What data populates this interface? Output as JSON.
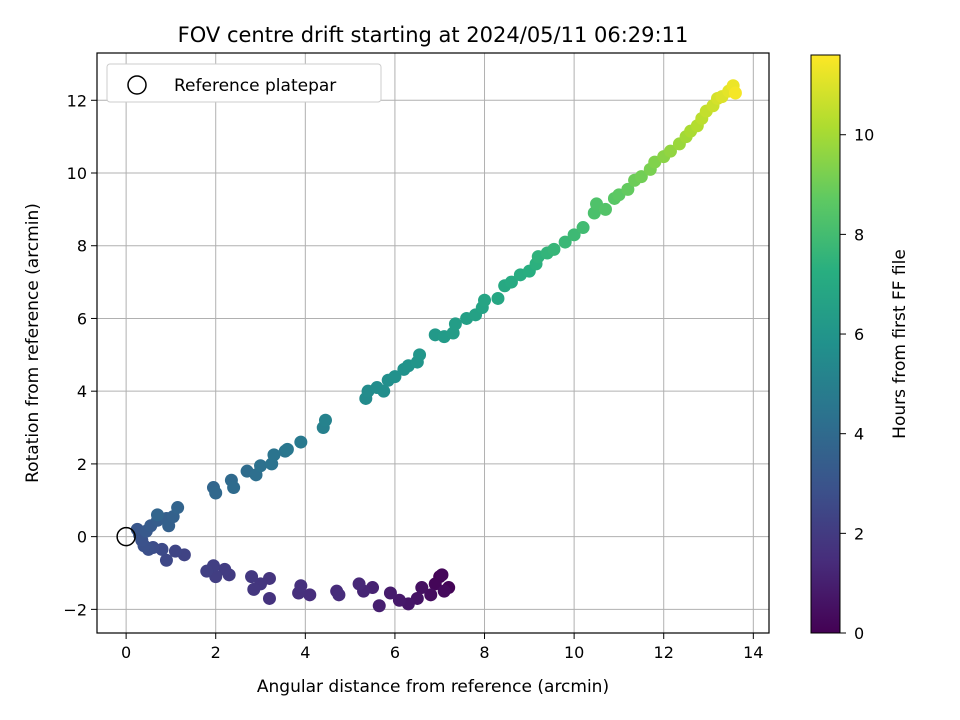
{
  "chart_data": {
    "type": "scatter",
    "title": "FOV centre drift starting at 2024/05/11 06:29:11",
    "xlabel": "Angular distance from reference (arcmin)",
    "ylabel": "Rotation from reference (arcmin)",
    "xlim": [
      -0.65,
      14.35
    ],
    "ylim": [
      -2.65,
      13.3
    ],
    "xticks": [
      0,
      2,
      4,
      6,
      8,
      10,
      12,
      14
    ],
    "yticks": [
      -2,
      0,
      2,
      4,
      6,
      8,
      10,
      12
    ],
    "grid": true,
    "legend": {
      "placement": "top-left",
      "entries": [
        {
          "label": "Reference platepar",
          "marker": "open-circle"
        }
      ]
    },
    "reference_point": {
      "x": 0,
      "y": 0
    },
    "colorbar": {
      "label": "Hours from first FF file",
      "range": [
        0,
        11.6
      ],
      "ticks": [
        0,
        2,
        4,
        6,
        8,
        10
      ],
      "colormap": "viridis"
    },
    "series": [
      {
        "note_columns": [
          "x",
          "y",
          "hours"
        ],
        "points": [
          [
            7.0,
            -1.1,
            0.0
          ],
          [
            7.2,
            -1.4,
            0.1
          ],
          [
            6.9,
            -1.3,
            0.15
          ],
          [
            7.05,
            -1.05,
            0.2
          ],
          [
            7.1,
            -1.5,
            0.3
          ],
          [
            6.8,
            -1.6,
            0.4
          ],
          [
            6.6,
            -1.4,
            0.5
          ],
          [
            6.5,
            -1.7,
            0.6
          ],
          [
            6.3,
            -1.85,
            0.7
          ],
          [
            6.1,
            -1.75,
            0.8
          ],
          [
            5.9,
            -1.55,
            0.9
          ],
          [
            5.65,
            -1.9,
            1.0
          ],
          [
            5.5,
            -1.4,
            1.1
          ],
          [
            5.3,
            -1.5,
            1.2
          ],
          [
            5.2,
            -1.3,
            1.3
          ],
          [
            4.7,
            -1.5,
            1.4
          ],
          [
            4.75,
            -1.6,
            1.45
          ],
          [
            4.1,
            -1.6,
            1.5
          ],
          [
            3.85,
            -1.55,
            1.55
          ],
          [
            3.9,
            -1.35,
            1.6
          ],
          [
            3.2,
            -1.7,
            1.7
          ],
          [
            3.2,
            -1.15,
            1.75
          ],
          [
            3.0,
            -1.3,
            1.8
          ],
          [
            2.85,
            -1.45,
            1.85
          ],
          [
            2.8,
            -1.1,
            1.9
          ],
          [
            2.3,
            -1.05,
            2.0
          ],
          [
            2.2,
            -0.9,
            2.05
          ],
          [
            2.0,
            -1.1,
            2.1
          ],
          [
            1.95,
            -0.8,
            2.15
          ],
          [
            1.8,
            -0.95,
            2.2
          ],
          [
            1.3,
            -0.5,
            2.3
          ],
          [
            1.1,
            -0.4,
            2.4
          ],
          [
            0.9,
            -0.65,
            2.5
          ],
          [
            0.8,
            -0.35,
            2.6
          ],
          [
            0.6,
            -0.3,
            2.7
          ],
          [
            0.5,
            -0.35,
            2.8
          ],
          [
            0.4,
            -0.25,
            2.85
          ],
          [
            0.35,
            -0.1,
            2.9
          ],
          [
            0.3,
            0.05,
            3.0
          ],
          [
            0.25,
            0.2,
            3.1
          ],
          [
            0.45,
            0.15,
            3.2
          ],
          [
            0.55,
            0.3,
            3.3
          ],
          [
            0.7,
            0.45,
            3.4
          ],
          [
            0.9,
            0.5,
            3.5
          ],
          [
            0.95,
            0.3,
            3.55
          ],
          [
            1.05,
            0.55,
            3.6
          ],
          [
            1.15,
            0.8,
            3.7
          ],
          [
            0.7,
            0.6,
            3.75
          ],
          [
            1.95,
            1.35,
            3.8
          ],
          [
            2.0,
            1.2,
            3.9
          ],
          [
            2.35,
            1.55,
            4.0
          ],
          [
            2.4,
            1.35,
            4.05
          ],
          [
            2.7,
            1.8,
            4.1
          ],
          [
            2.9,
            1.7,
            4.2
          ],
          [
            3.0,
            1.95,
            4.3
          ],
          [
            3.25,
            2.0,
            4.4
          ],
          [
            3.3,
            2.25,
            4.45
          ],
          [
            3.55,
            2.35,
            4.5
          ],
          [
            3.6,
            2.4,
            4.6
          ],
          [
            3.9,
            2.6,
            4.7
          ],
          [
            4.4,
            3.0,
            5.0
          ],
          [
            4.45,
            3.2,
            5.1
          ],
          [
            5.35,
            3.8,
            5.5
          ],
          [
            5.4,
            4.0,
            5.55
          ],
          [
            5.6,
            4.1,
            5.6
          ],
          [
            5.75,
            4.0,
            5.65
          ],
          [
            5.85,
            4.3,
            5.7
          ],
          [
            6.0,
            4.4,
            5.8
          ],
          [
            6.2,
            4.6,
            5.85
          ],
          [
            6.3,
            4.7,
            5.9
          ],
          [
            6.5,
            4.8,
            6.0
          ],
          [
            6.55,
            5.0,
            6.05
          ],
          [
            6.9,
            5.55,
            6.2
          ],
          [
            7.1,
            5.5,
            6.3
          ],
          [
            7.3,
            5.6,
            6.35
          ],
          [
            7.35,
            5.85,
            6.4
          ],
          [
            7.6,
            6.0,
            6.5
          ],
          [
            7.8,
            6.1,
            6.6
          ],
          [
            7.95,
            6.3,
            6.7
          ],
          [
            8.0,
            6.5,
            6.75
          ],
          [
            8.3,
            6.55,
            6.85
          ],
          [
            8.45,
            6.9,
            6.95
          ],
          [
            8.6,
            7.0,
            7.05
          ],
          [
            8.8,
            7.2,
            7.15
          ],
          [
            9.0,
            7.3,
            7.25
          ],
          [
            9.15,
            7.5,
            7.35
          ],
          [
            9.2,
            7.7,
            7.45
          ],
          [
            9.4,
            7.8,
            7.55
          ],
          [
            9.55,
            7.9,
            7.65
          ],
          [
            9.8,
            8.1,
            7.75
          ],
          [
            10.0,
            8.3,
            7.85
          ],
          [
            10.2,
            8.5,
            7.95
          ],
          [
            10.45,
            8.9,
            8.2
          ],
          [
            10.5,
            9.15,
            8.3
          ],
          [
            10.7,
            9.0,
            8.4
          ],
          [
            10.9,
            9.3,
            8.55
          ],
          [
            11.0,
            9.4,
            8.65
          ],
          [
            11.2,
            9.55,
            8.8
          ],
          [
            11.35,
            9.8,
            8.95
          ],
          [
            11.5,
            9.9,
            9.05
          ],
          [
            11.7,
            10.1,
            9.2
          ],
          [
            11.8,
            10.3,
            9.35
          ],
          [
            12.0,
            10.45,
            9.5
          ],
          [
            12.15,
            10.6,
            9.65
          ],
          [
            12.35,
            10.8,
            9.8
          ],
          [
            12.5,
            11.0,
            9.95
          ],
          [
            12.6,
            11.15,
            10.1
          ],
          [
            12.75,
            11.3,
            10.25
          ],
          [
            12.85,
            11.5,
            10.4
          ],
          [
            12.95,
            11.7,
            10.55
          ],
          [
            13.1,
            11.85,
            10.7
          ],
          [
            13.2,
            12.05,
            10.85
          ],
          [
            13.3,
            12.1,
            11.0
          ],
          [
            13.45,
            12.25,
            11.15
          ],
          [
            13.55,
            12.4,
            11.3
          ],
          [
            13.6,
            12.2,
            11.45
          ]
        ]
      }
    ]
  }
}
